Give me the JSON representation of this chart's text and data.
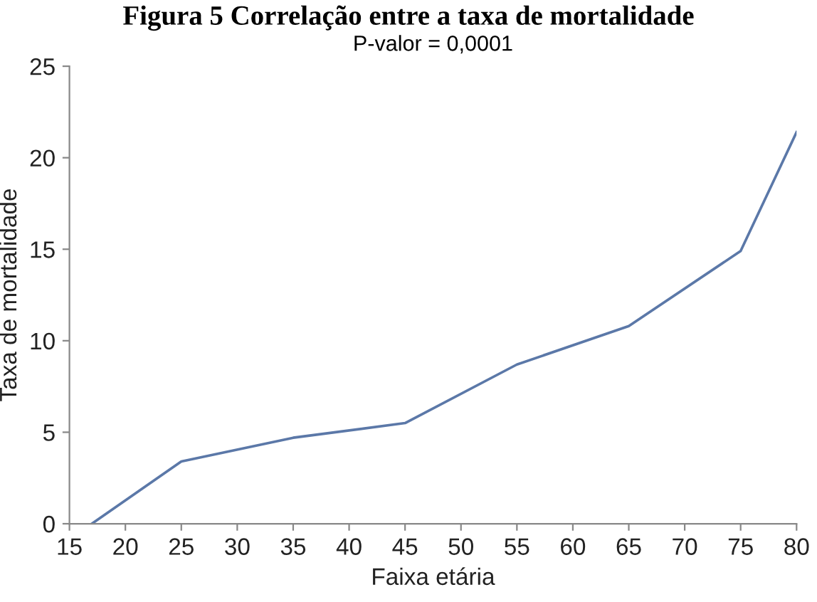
{
  "chart_data": {
    "type": "line",
    "title": "Figura 5 Correlação entre a taxa de mortalidade",
    "subtitle": "P-valor = 0,0001",
    "xlabel": "Faixa etária",
    "ylabel": "Taxa de mortalidade",
    "x": [
      17,
      25,
      35,
      45,
      55,
      65,
      75,
      80
    ],
    "series": [
      {
        "color": "#5b78a8",
        "values": [
          0,
          3.4,
          4.7,
          5.5,
          8.7,
          10.8,
          14.9,
          21.4
        ]
      }
    ],
    "xlim": [
      15,
      80
    ],
    "xticks": [
      15,
      20,
      25,
      30,
      35,
      40,
      45,
      50,
      55,
      60,
      65,
      70,
      75,
      80
    ],
    "ylim": [
      0,
      25
    ],
    "yticks": [
      0,
      5,
      10,
      15,
      20,
      25
    ],
    "grid": false,
    "legend": false,
    "marker": "none",
    "line_style": "solid"
  }
}
